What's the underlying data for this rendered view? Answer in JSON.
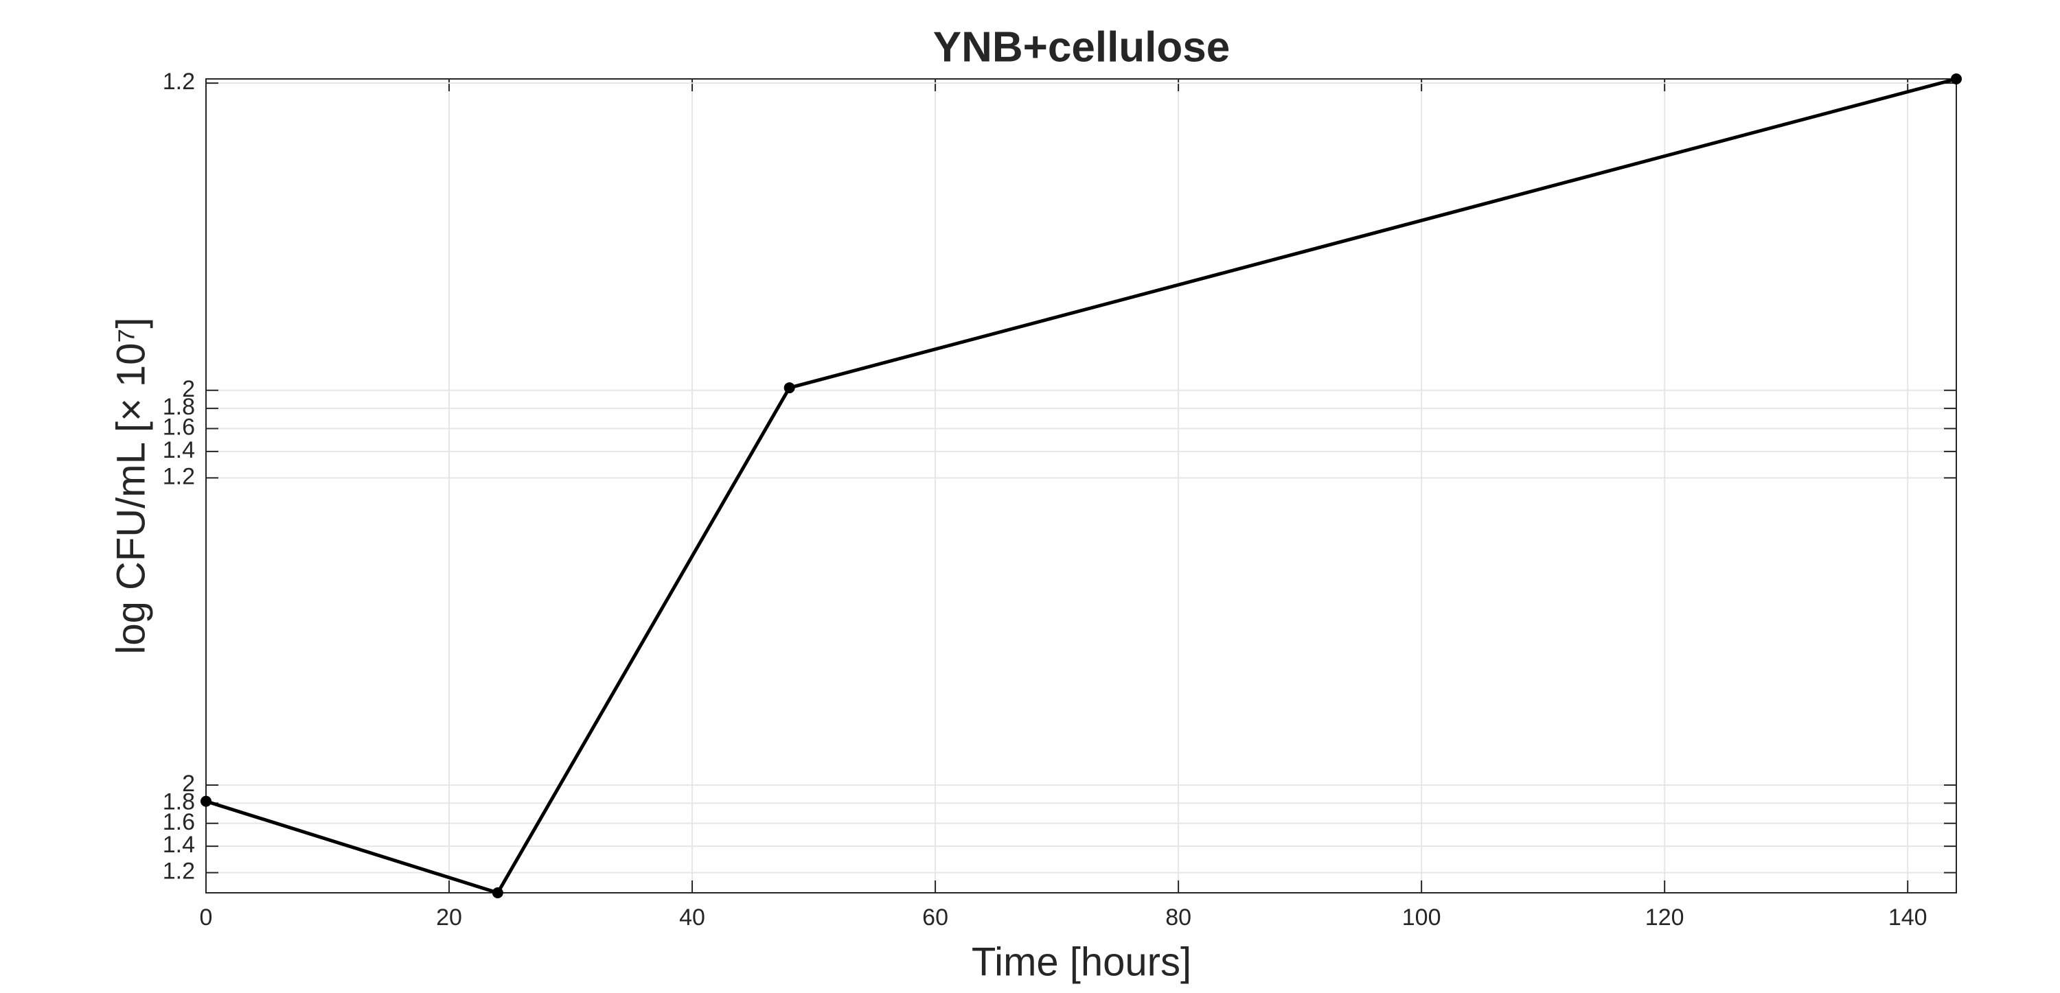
{
  "chart_data": {
    "type": "line",
    "title": "YNB+cellulose",
    "xlabel": "Time [hours]",
    "ylabel": "log CFU/mL [× 10⁷]",
    "x": [
      0,
      24,
      48,
      144
    ],
    "series": [
      {
        "color": "#000000",
        "values": [
          1.82,
          1.067,
          20.3,
          123
        ]
      }
    ],
    "xlim": [
      0,
      144
    ],
    "xticks": [
      0,
      20,
      40,
      60,
      80,
      100,
      120,
      140
    ],
    "ylim": [
      1.067,
      123
    ],
    "yscale": "log",
    "yticks": [
      1.2,
      1.4,
      1.6,
      1.8,
      2,
      {
        "value": 12,
        "label": "1.2"
      },
      {
        "value": 14,
        "label": "1.4"
      },
      {
        "value": 16,
        "label": "1.6"
      },
      {
        "value": 18,
        "label": "1.8"
      },
      {
        "value": 20,
        "label": "2"
      },
      {
        "value": 120,
        "label": "1.2"
      }
    ],
    "grid": true
  }
}
